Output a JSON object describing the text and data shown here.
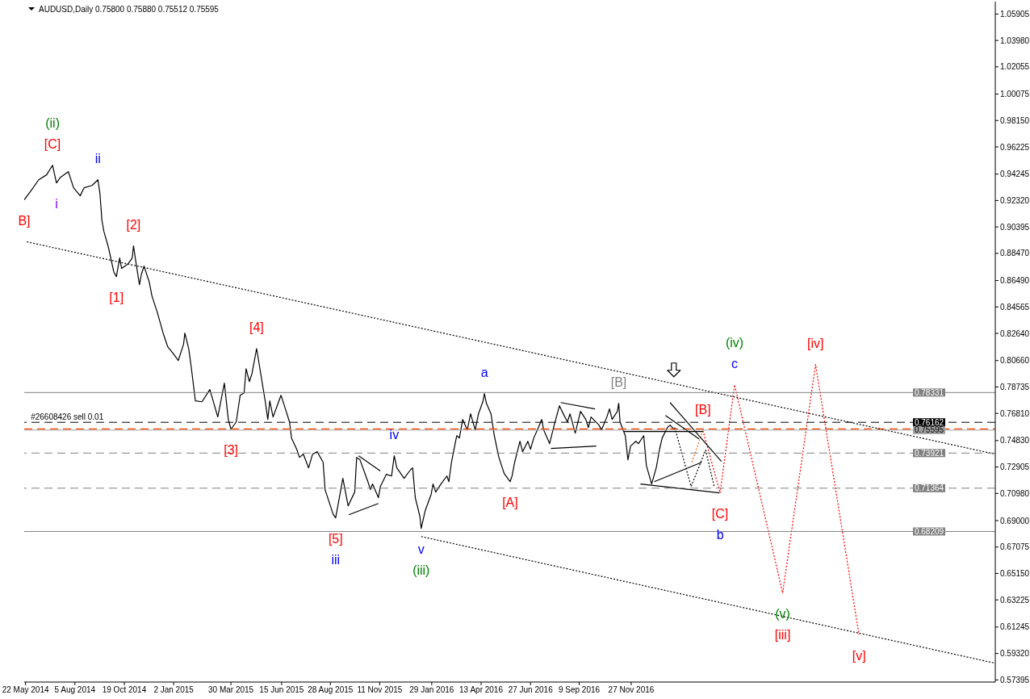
{
  "chart_data": {
    "type": "line",
    "title": "AUDUSD,Daily 0.75800 0.75880 0.75512 0.75595",
    "xlim": [
      "2014-05-20",
      "2018-06-03"
    ],
    "xticks": [
      {
        "value": "2014-05-22",
        "label": "22 May 2014"
      },
      {
        "value": "2014-08-05",
        "label": "5 Aug 2014"
      },
      {
        "value": "2014-10-19",
        "label": "19 Oct 2014"
      },
      {
        "value": "2015-01-02",
        "label": "2 Jan 2015"
      },
      {
        "value": "2015-03-30",
        "label": "30 Mar 2015"
      },
      {
        "value": "2015-06-15",
        "label": "15 Jun 2015"
      },
      {
        "value": "2015-08-28",
        "label": "28 Aug 2015"
      },
      {
        "value": "2015-11-11",
        "label": "11 Nov 2015"
      },
      {
        "value": "2016-01-29",
        "label": "29 Jan 2016"
      },
      {
        "value": "2016-04-13",
        "label": "13 Apr 2016"
      },
      {
        "value": "2016-06-27",
        "label": "27 Jun 2016"
      },
      {
        "value": "2016-09-09",
        "label": "9 Sep 2016"
      },
      {
        "value": "2016-11-27",
        "label": "27 Nov 2016"
      }
    ],
    "ylim": [
      0.5724,
      1.0681
    ],
    "yticks": [
      1.05905,
      {
        "value": 1.0398,
        "label": "1.03980"
      },
      1.02055,
      1.00075,
      {
        "value": 0.9815,
        "label": "0.98150"
      },
      0.96225,
      0.94245,
      {
        "value": 0.9232,
        "label": "0.92320"
      },
      0.90395,
      {
        "value": 0.8847,
        "label": "0.88470"
      },
      {
        "value": 0.8649,
        "label": "0.86490"
      },
      0.84565,
      {
        "value": 0.8264,
        "label": "0.82640"
      },
      {
        "value": 0.8066,
        "label": "0.80660"
      },
      0.78735,
      {
        "value": 0.7681,
        "label": "0.76810"
      },
      {
        "value": 0.7483,
        "label": "0.74830"
      },
      0.72905,
      {
        "value": 0.7098,
        "label": "0.70980"
      },
      {
        "value": 0.69,
        "label": "0.69000"
      },
      0.67075,
      {
        "value": 0.6515,
        "label": "0.65150"
      },
      0.63225,
      0.61245,
      {
        "value": 0.5932,
        "label": "0.59320"
      },
      0.57395
    ],
    "series": [
      {
        "color": "#000000",
        "line_style": "solid",
        "x": [
          "2014-05-20",
          "2014-05-30",
          "2014-06-11",
          "2014-06-23",
          "2014-07-02",
          "2014-07-08",
          "2014-07-14",
          "2014-07-26",
          "2014-08-03",
          "2014-08-13",
          "2014-08-19",
          "2014-08-31",
          "2014-09-09",
          "2014-09-12",
          "2014-09-15",
          "2014-09-18",
          "2014-09-25",
          "2014-10-03",
          "2014-10-07",
          "2014-10-12",
          "2014-10-15",
          "2014-10-25",
          "2014-10-31",
          "2014-11-02",
          "2014-11-06",
          "2014-11-11",
          "2014-11-14",
          "2014-11-18",
          "2014-11-26",
          "2014-11-30",
          "2014-12-08",
          "2014-12-17",
          "2014-12-24",
          "2015-01-01",
          "2015-01-09",
          "2015-01-17",
          "2015-01-19",
          "2015-01-25",
          "2015-01-29",
          "2015-02-04",
          "2015-02-14",
          "2015-02-22",
          "2015-02-26",
          "2015-03-10",
          "2015-03-20",
          "2015-03-26",
          "2015-03-30",
          "2015-04-07",
          "2015-04-13",
          "2015-04-19",
          "2015-04-22",
          "2015-04-27",
          "2015-05-01",
          "2015-05-08",
          "2015-05-13",
          "2015-05-21",
          "2015-05-25",
          "2015-05-28",
          "2015-06-02",
          "2015-06-14",
          "2015-06-18",
          "2015-06-27",
          "2015-06-30",
          "2015-07-08",
          "2015-07-12",
          "2015-07-18",
          "2015-07-26",
          "2015-08-01",
          "2015-08-08",
          "2015-08-17",
          "2015-08-20",
          "2015-09-01",
          "2015-09-05",
          "2015-09-10",
          "2015-09-16",
          "2015-09-24",
          "2015-10-04",
          "2015-10-07",
          "2015-10-12",
          "2015-10-24",
          "2015-10-28",
          "2015-10-31",
          "2015-11-09",
          "2015-11-12",
          "2015-11-21",
          "2015-11-29",
          "2015-12-03",
          "2015-12-07",
          "2015-12-18",
          "2015-12-28",
          "2015-12-31",
          "2016-01-04",
          "2016-01-11",
          "2016-01-13",
          "2016-01-19",
          "2016-01-28",
          "2016-01-31",
          "2016-02-04",
          "2016-02-12",
          "2016-02-21",
          "2016-02-24",
          "2016-02-28",
          "2016-03-07",
          "2016-03-11",
          "2016-03-16",
          "2016-03-23",
          "2016-03-28",
          "2016-04-04",
          "2016-04-09",
          "2016-04-16",
          "2016-04-18",
          "2016-04-21",
          "2016-04-28",
          "2016-05-03",
          "2016-05-10",
          "2016-05-18",
          "2016-05-27",
          "2016-05-30",
          "2016-06-03",
          "2016-06-11",
          "2016-06-15",
          "2016-06-23",
          "2016-06-27",
          "2016-07-02",
          "2016-07-09",
          "2016-07-14",
          "2016-07-17",
          "2016-07-26",
          "2016-08-02",
          "2016-08-10",
          "2016-08-14",
          "2016-08-22",
          "2016-08-26",
          "2016-09-03",
          "2016-09-11",
          "2016-09-19",
          "2016-09-23",
          "2016-09-27",
          "2016-10-09",
          "2016-10-13",
          "2016-10-21",
          "2016-10-25",
          "2016-10-29",
          "2016-11-06",
          "2016-11-08",
          "2016-11-10",
          "2016-11-18",
          "2016-11-22",
          "2016-11-26",
          "2016-12-04",
          "2016-12-08",
          "2016-12-16",
          "2016-12-20",
          "2016-12-28",
          "2017-01-04",
          "2017-01-09",
          "2017-01-13",
          "2017-01-21",
          "2017-01-25",
          "2017-02-01"
        ],
        "values": [
          0.9237,
          0.9301,
          0.9383,
          0.9419,
          0.9489,
          0.936,
          0.9401,
          0.9442,
          0.9325,
          0.9266,
          0.9325,
          0.9342,
          0.9383,
          0.9284,
          0.9089,
          0.9007,
          0.8889,
          0.8713,
          0.8678,
          0.8813,
          0.8737,
          0.8772,
          0.8813,
          0.8901,
          0.8772,
          0.8619,
          0.8695,
          0.8754,
          0.8637,
          0.8537,
          0.8419,
          0.8266,
          0.8166,
          0.8119,
          0.8066,
          0.8184,
          0.8266,
          0.8149,
          0.8007,
          0.7772,
          0.7766,
          0.7825,
          0.7855,
          0.7655,
          0.7902,
          0.7637,
          0.7566,
          0.7619,
          0.7813,
          0.7831,
          0.8007,
          0.7913,
          0.7972,
          0.8154,
          0.8007,
          0.7772,
          0.7637,
          0.7772,
          0.7655,
          0.7813,
          0.7755,
          0.7619,
          0.7502,
          0.7419,
          0.7361,
          0.7384,
          0.7284,
          0.7384,
          0.7402,
          0.7325,
          0.7126,
          0.6949,
          0.692,
          0.7049,
          0.7208,
          0.7008,
          0.7108,
          0.7361,
          0.7343,
          0.7184,
          0.7126,
          0.7167,
          0.7067,
          0.7149,
          0.7237,
          0.7225,
          0.7372,
          0.7284,
          0.7208,
          0.7272,
          0.7284,
          0.7067,
          0.6931,
          0.6843,
          0.6972,
          0.709,
          0.7167,
          0.7108,
          0.7167,
          0.7225,
          0.7184,
          0.7325,
          0.7519,
          0.7502,
          0.7637,
          0.7561,
          0.7678,
          0.7561,
          0.7678,
          0.7772,
          0.7825,
          0.7755,
          0.7678,
          0.7519,
          0.7361,
          0.7243,
          0.7184,
          0.7225,
          0.7325,
          0.7478,
          0.7402,
          0.7478,
          0.742,
          0.7502,
          0.7578,
          0.7637,
          0.7561,
          0.7461,
          0.7596,
          0.7737,
          0.7696,
          0.7619,
          0.7678,
          0.7537,
          0.7696,
          0.7637,
          0.7578,
          0.7655,
          0.7596,
          0.7561,
          0.7655,
          0.7714,
          0.7637,
          0.7696,
          0.7755,
          0.7619,
          0.7519,
          0.7343,
          0.7443,
          0.7478,
          0.7461,
          0.7519,
          0.7302,
          0.7167,
          0.7284,
          0.7419,
          0.7502,
          0.7578,
          0.7596,
          0.756
        ]
      },
      {
        "color": "#ff4500",
        "line_style": "dashed",
        "x": [
          "2014-05-20",
          "2018-06-03"
        ],
        "values": [
          0.7568,
          0.7568
        ]
      },
      {
        "color": "#000000",
        "line_style": "dotted",
        "x": [
          "2014-05-24",
          "2018-06-03"
        ],
        "values": [
          0.8931,
          0.7384
        ]
      },
      {
        "color": "#000000",
        "line_style": "dotted",
        "x": [
          "2016-01-13",
          "2018-06-03"
        ],
        "values": [
          0.6784,
          0.5861
        ]
      },
      {
        "color": "#ff0000",
        "line_style": "dotted",
        "x": [
          "2017-03-16",
          "2017-04-11",
          "2017-05-03",
          "2017-07-15",
          "2017-09-03",
          "2017-11-08"
        ],
        "values": [
          0.7555,
          0.7102,
          0.789,
          0.6373,
          0.8037,
          0.6067
        ]
      },
      {
        "color": "#ff6600",
        "line_style": "dotted",
        "x": [
          "2017-02-27",
          "2017-03-16"
        ],
        "values": [
          0.7325,
          0.7555
        ]
      },
      {
        "color": "#000000",
        "line_style": "dotted",
        "x": [
          "2017-02-01",
          "2017-02-26",
          "2017-03-20",
          "2017-04-02"
        ],
        "values": [
          0.7578,
          0.7149,
          0.7414,
          0.7149
        ]
      },
      {
        "color": "#000000",
        "line_style": "solid",
        "x": [
          "2015-10-10",
          "2015-11-12"
        ],
        "values": [
          0.7372,
          0.7261
        ]
      },
      {
        "color": "#000000",
        "line_style": "solid",
        "x": [
          "2015-09-25",
          "2015-11-09"
        ],
        "values": [
          0.6943,
          0.7025
        ]
      },
      {
        "color": "#000000",
        "line_style": "solid",
        "x": [
          "2016-08-12",
          "2016-10-03"
        ],
        "values": [
          0.776,
          0.7714
        ]
      },
      {
        "color": "#000000",
        "line_style": "solid",
        "x": [
          "2016-07-28",
          "2016-10-05"
        ],
        "values": [
          0.7425,
          0.7443
        ]
      },
      {
        "color": "#000000",
        "line_style": "solid",
        "x": [
          "2016-11-16",
          "2017-03-16"
        ],
        "values": [
          0.7549,
          0.7549
        ]
      },
      {
        "color": "#000000",
        "line_style": "solid",
        "x": [
          "2017-01-25",
          "2017-04-13"
        ],
        "values": [
          0.776,
          0.7331
        ]
      },
      {
        "color": "#000000",
        "line_style": "solid",
        "x": [
          "2017-01-18",
          "2017-03-10"
        ],
        "values": [
          0.7666,
          0.7496
        ]
      },
      {
        "color": "#000000",
        "line_style": "solid",
        "x": [
          "2016-12-11",
          "2017-04-10"
        ],
        "values": [
          0.7167,
          0.7102
        ]
      },
      {
        "color": "#000000",
        "line_style": "solid",
        "x": [
          "2017-01-01",
          "2017-03-14"
        ],
        "values": [
          0.7184,
          0.7325
        ]
      }
    ],
    "ref_lines": [
      {
        "axis": "y",
        "value": 0.78331,
        "label": "0.78331",
        "color": "#808080",
        "line_style": "solid"
      },
      {
        "axis": "y",
        "value": 0.76162,
        "label": "0.76162",
        "color": "#000000",
        "line_style": "dashed"
      },
      {
        "axis": "y",
        "value": 0.75595,
        "label": "0.75595",
        "color": "#a0a0a0",
        "line_style": "solid"
      },
      {
        "axis": "y",
        "value": 0.73921,
        "label": "0.73921",
        "color": "#808080",
        "line_style": "dashed"
      },
      {
        "axis": "y",
        "value": 0.71364,
        "label": "0.71364",
        "color": "#808080",
        "line_style": "dashed"
      },
      {
        "axis": "y",
        "value": 0.68209,
        "label": "0.68209",
        "color": "#808080",
        "line_style": "solid"
      }
    ],
    "annotations": [
      {
        "text": "[C]",
        "x": "2014-07-02",
        "y": 0.9489
      },
      {
        "text": "(ii)",
        "x": "2014-07-02",
        "y": 0.9489
      },
      {
        "text": "ii",
        "x": "2014-09-09",
        "y": 0.9383
      },
      {
        "text": "i",
        "x": "2014-07-08",
        "y": 0.936
      },
      {
        "text": "B]",
        "x": "2014-05-20",
        "y": 0.9237
      },
      {
        "text": "[2]",
        "x": "2014-11-02",
        "y": 0.8901
      },
      {
        "text": "[1]",
        "x": "2014-10-07",
        "y": 0.8678
      },
      {
        "text": "[4]",
        "x": "2015-05-08",
        "y": 0.8154
      },
      {
        "text": "[3]",
        "x": "2015-03-30",
        "y": 0.7566
      },
      {
        "text": "[5]",
        "x": "2015-09-05",
        "y": 0.692
      },
      {
        "text": "iii",
        "x": "2015-09-05",
        "y": 0.692
      },
      {
        "text": "iv",
        "x": "2015-12-03",
        "y": 0.7372
      },
      {
        "text": "v",
        "x": "2016-01-13",
        "y": 0.6843
      },
      {
        "text": "(iii)",
        "x": "2016-01-13",
        "y": 0.6843
      },
      {
        "text": "a",
        "x": "2016-04-18",
        "y": 0.7825
      },
      {
        "text": "[A]",
        "x": "2016-05-27",
        "y": 0.7184
      },
      {
        "text": "[B]",
        "x": "2016-11-08",
        "y": 0.7755
      },
      {
        "text": "[B]",
        "x": "2017-03-16",
        "y": 0.7555
      },
      {
        "text": "[C]",
        "x": "2017-04-11",
        "y": 0.7102
      },
      {
        "text": "b",
        "x": "2017-04-11",
        "y": 0.7102
      },
      {
        "text": "c",
        "x": "2017-05-03",
        "y": 0.789
      },
      {
        "text": "(iv)",
        "x": "2017-05-03",
        "y": 0.789
      },
      {
        "text": "[iv]",
        "x": "2017-09-03",
        "y": 0.8037
      },
      {
        "text": "(v)",
        "x": "2017-07-15",
        "y": 0.6373
      },
      {
        "text": "[iii]",
        "x": "2017-07-15",
        "y": 0.6373
      },
      {
        "text": "[v]",
        "x": "2017-11-08",
        "y": 0.6067
      },
      {
        "text": "#26608426 sell 0.01",
        "x": "2014-05-30",
        "y": 0.76162
      }
    ]
  }
}
